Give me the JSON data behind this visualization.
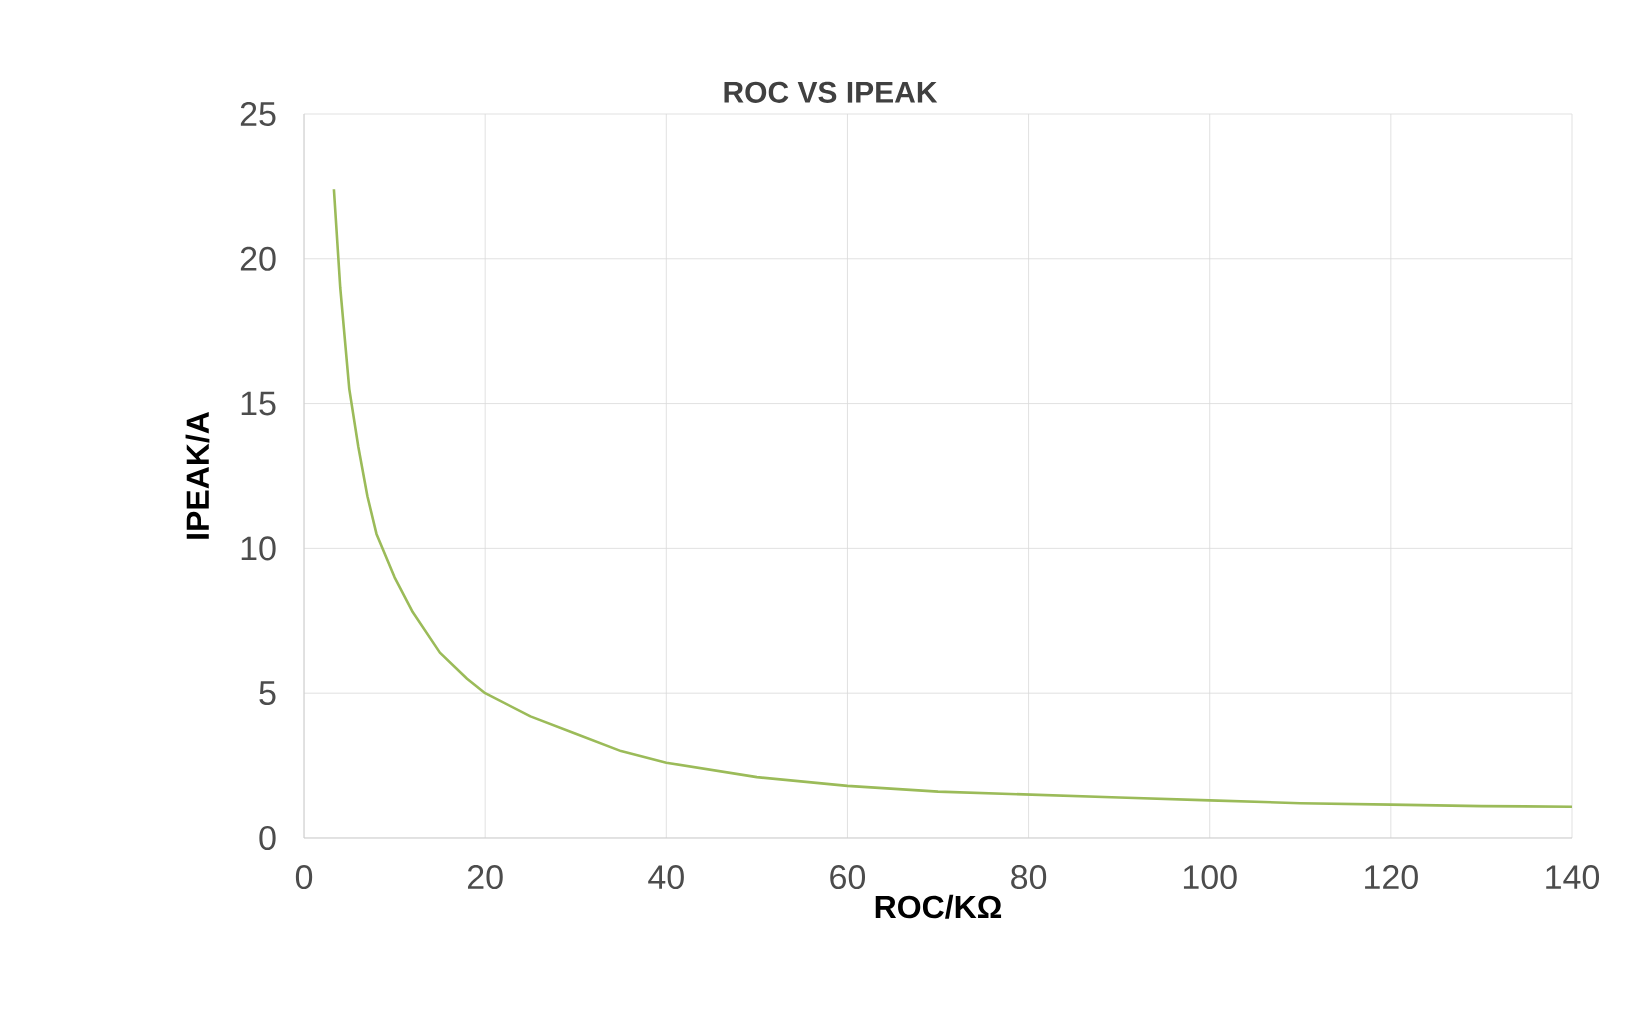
{
  "chart_data": {
    "type": "line",
    "title": "ROC VS IPEAK",
    "xlabel": "ROC/KΩ",
    "ylabel": "IPEAK/A",
    "xlim": [
      0,
      140
    ],
    "ylim": [
      0,
      25
    ],
    "xticks": [
      0,
      20,
      40,
      60,
      80,
      100,
      120,
      140
    ],
    "yticks": [
      0,
      5,
      10,
      15,
      20,
      25
    ],
    "grid": true,
    "series": [
      {
        "color": "#9bbb59",
        "x": [
          3.3,
          4,
          5,
          6,
          7,
          8,
          10,
          12,
          15,
          18,
          20,
          25,
          30,
          35,
          40,
          50,
          60,
          70,
          80,
          90,
          100,
          110,
          120,
          130,
          140
        ],
        "values": [
          22.4,
          19,
          15.5,
          13.5,
          11.8,
          10.5,
          9,
          7.8,
          6.4,
          5.5,
          5,
          4.2,
          3.6,
          3.0,
          2.6,
          2.1,
          1.8,
          1.6,
          1.5,
          1.4,
          1.3,
          1.2,
          1.15,
          1.1,
          1.08
        ]
      }
    ]
  }
}
